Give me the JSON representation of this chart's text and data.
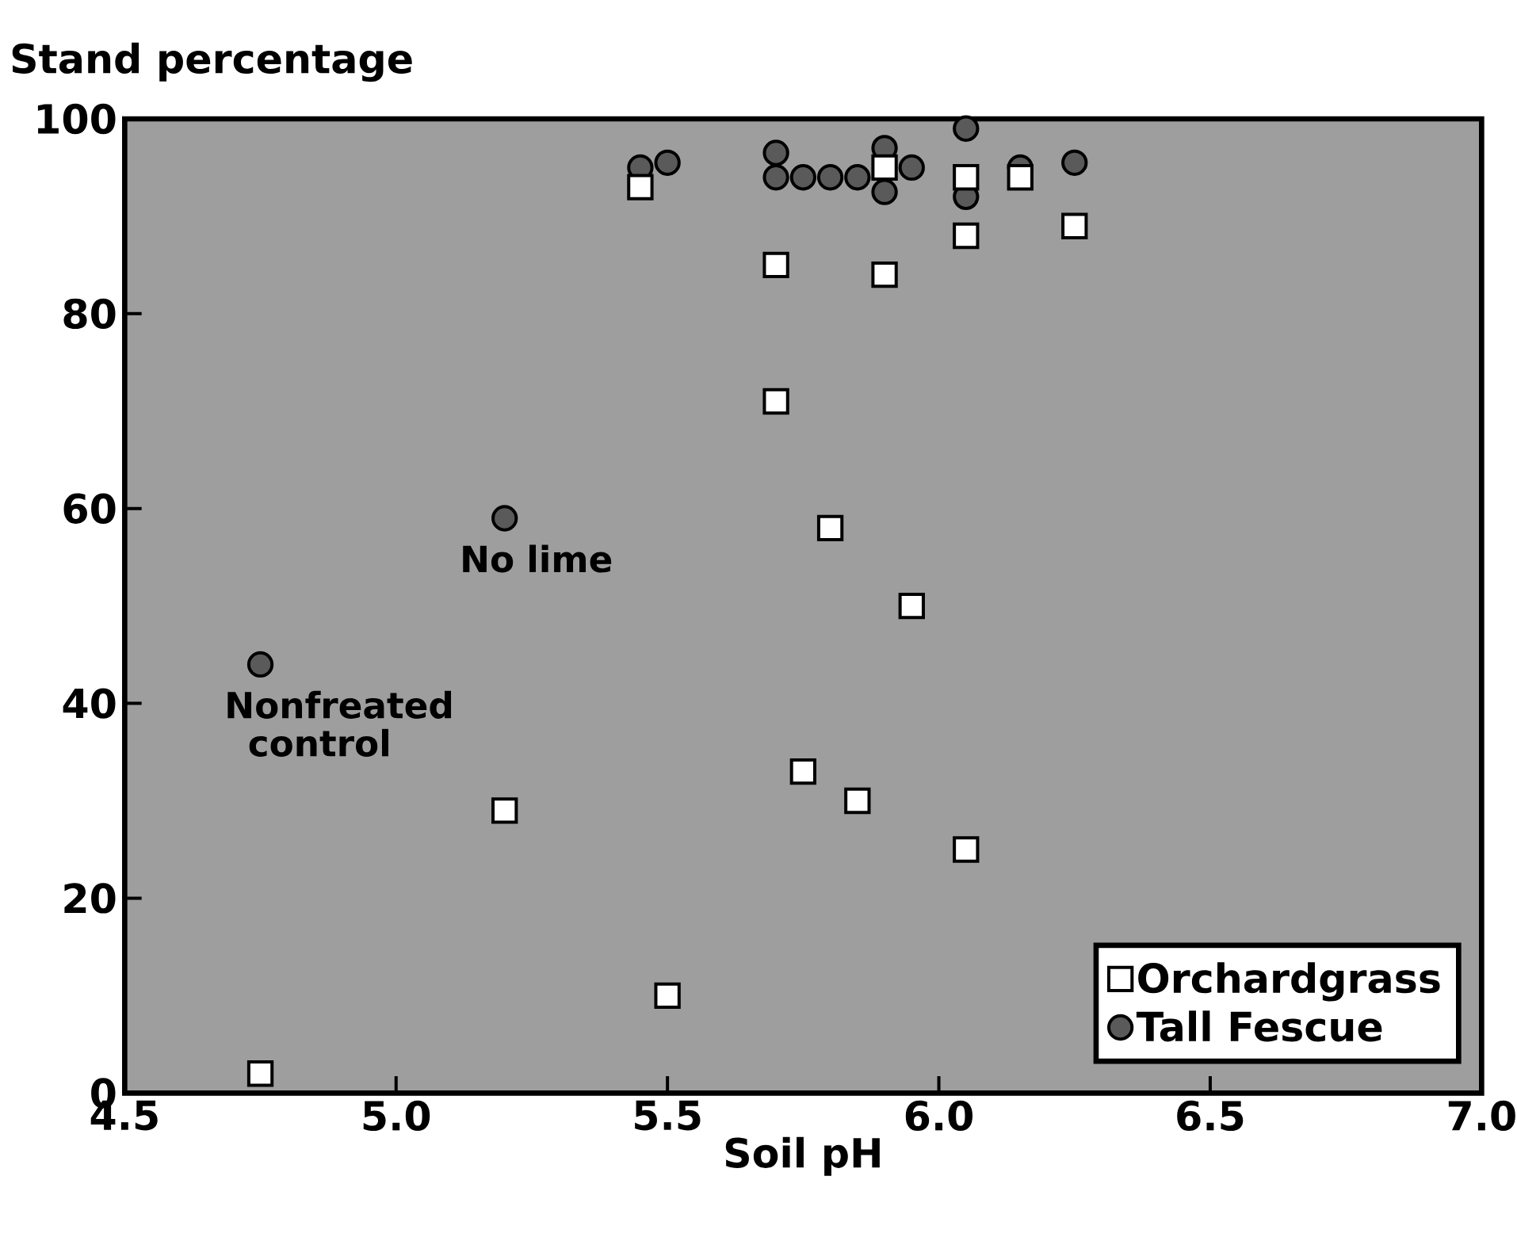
{
  "chart_data": {
    "type": "scatter",
    "xlabel": "Soil pH",
    "ylabel": "Stand percentage",
    "xlim": [
      4.5,
      7.0
    ],
    "xticks": [
      {
        "value": 4.5,
        "label": "4.5"
      },
      {
        "value": 5.0,
        "label": "5.0"
      },
      {
        "value": 5.5,
        "label": "5.5"
      },
      {
        "value": 6.0,
        "label": "6.0"
      },
      {
        "value": 6.5,
        "label": "6.5"
      },
      {
        "value": 7.0,
        "label": "7.0"
      }
    ],
    "ylim": [
      0,
      100
    ],
    "yticks": [
      0,
      20,
      40,
      60,
      80,
      100
    ],
    "legend": "bottom right",
    "series": [
      {
        "name": "Orchardgrass",
        "color": "#ffffff",
        "marker": "square",
        "x": [
          4.75,
          5.2,
          5.5,
          5.45,
          5.7,
          5.7,
          5.8,
          5.75,
          5.85,
          5.95,
          5.9,
          5.9,
          6.05,
          6.05,
          6.05,
          6.15,
          6.25
        ],
        "values": [
          2,
          29,
          10,
          93,
          85,
          71,
          58,
          33,
          30,
          50,
          84,
          95,
          88,
          94,
          25,
          94,
          89
        ]
      },
      {
        "name": "Tall Fescue",
        "color": "#5a5a5a",
        "marker": "circle",
        "x": [
          4.75,
          5.2,
          5.45,
          5.5,
          5.7,
          5.7,
          5.75,
          5.8,
          5.85,
          5.9,
          5.9,
          5.95,
          6.05,
          6.05,
          6.15,
          6.25
        ],
        "values": [
          44,
          59,
          95,
          95.5,
          96.5,
          94,
          94,
          94,
          94,
          97,
          92.5,
          95,
          99,
          92,
          95,
          95.5
        ]
      }
    ],
    "annotations": [
      {
        "text": "No lime",
        "x": 5.2,
        "y": 59
      },
      {
        "text": "Nonfreated control",
        "x": 4.75,
        "y": 44
      }
    ]
  }
}
